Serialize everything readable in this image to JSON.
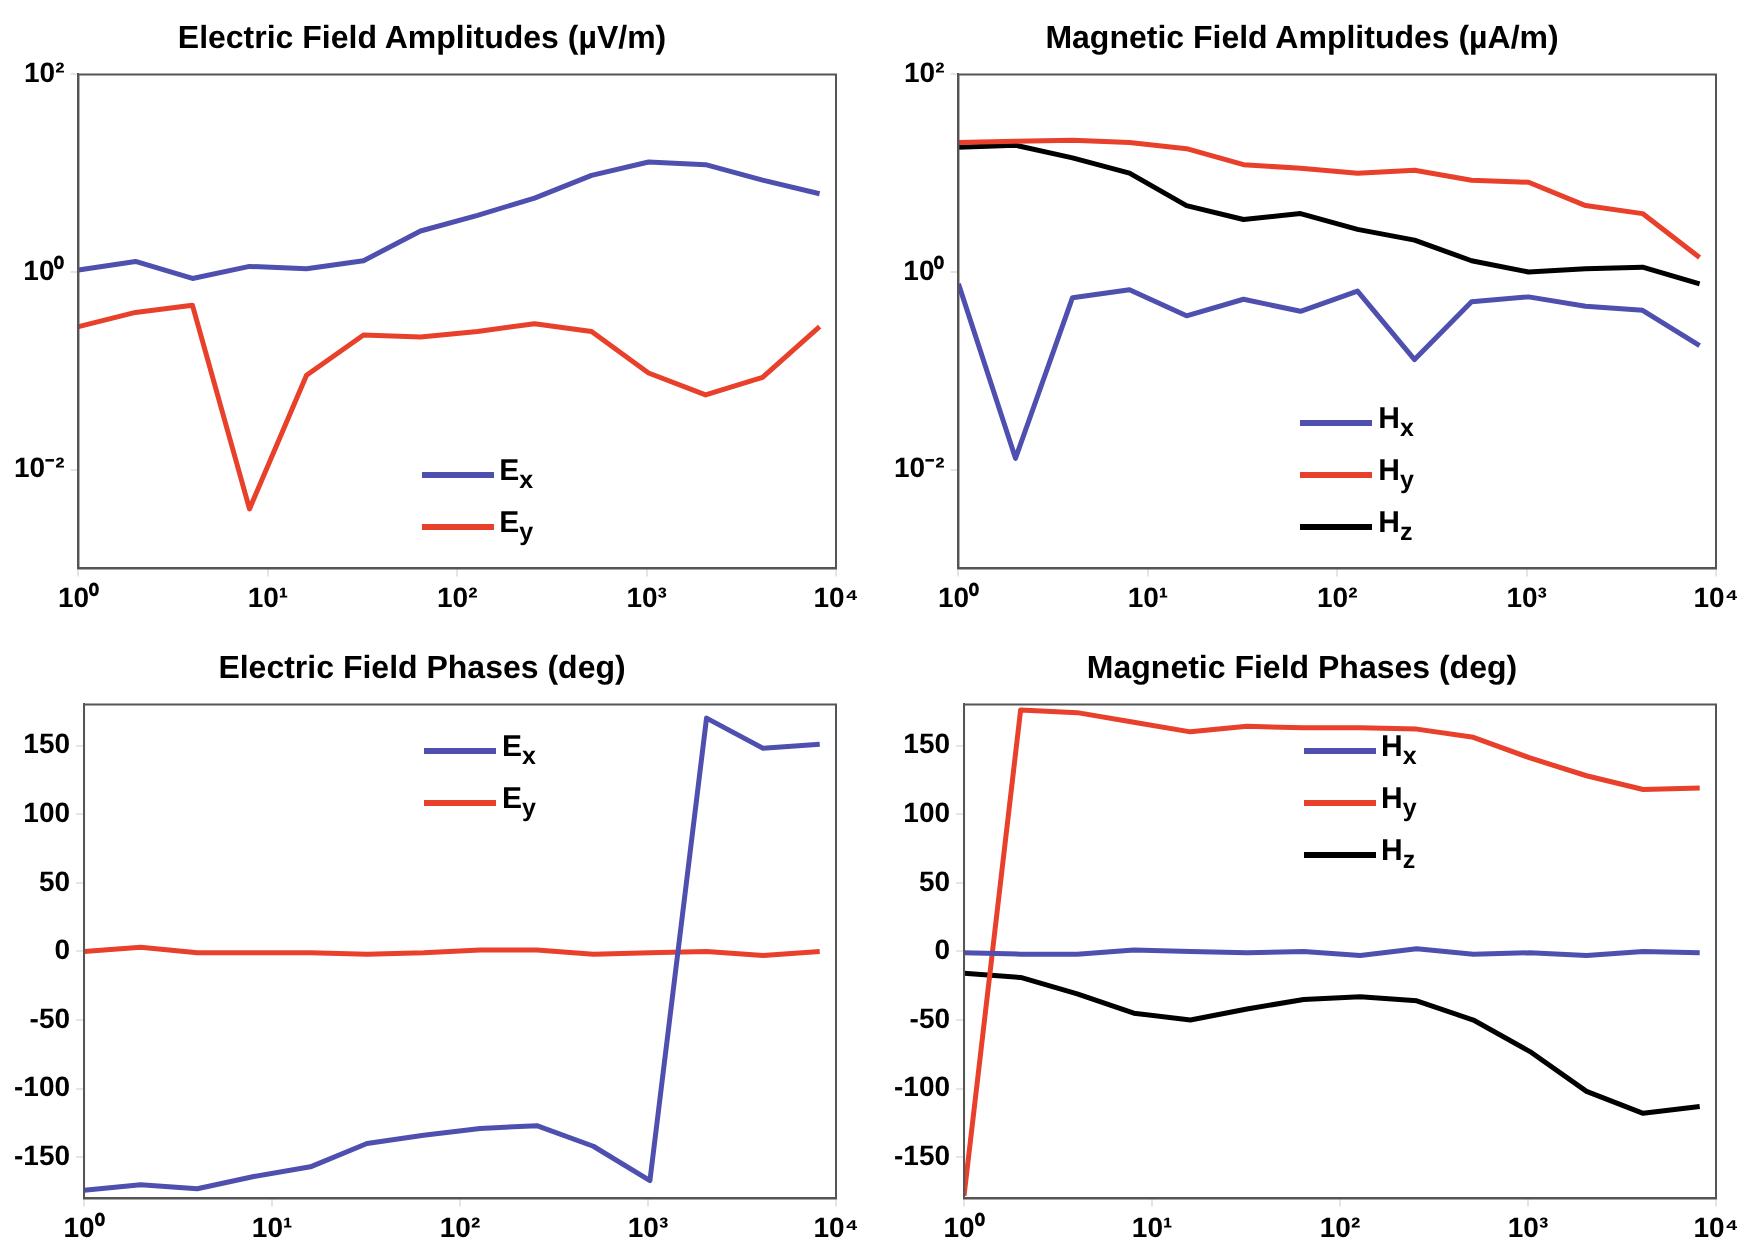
{
  "chart_data": [
    {
      "type": "line",
      "title": "Electric Field Amplitudes (µV/m)",
      "log": "xy",
      "grid": false,
      "legend": "bottom",
      "x": [
        1,
        2,
        4,
        8,
        16,
        32,
        64,
        128,
        256,
        512,
        1024,
        2048,
        4096,
        8192
      ],
      "xlim": [
        1,
        10000
      ],
      "xticks": [
        {
          "value": 1,
          "label": "10⁰"
        },
        {
          "value": 10,
          "label": "10¹"
        },
        {
          "value": 100,
          "label": "10²"
        },
        {
          "value": 1000,
          "label": "10³"
        },
        {
          "value": 10000,
          "label": "10⁴"
        }
      ],
      "ylim": [
        0.001,
        100
      ],
      "yticks": [
        {
          "value": 0.01,
          "label": "10⁻²"
        },
        {
          "value": 1,
          "label": "10⁰"
        },
        {
          "value": 100,
          "label": "10²"
        }
      ],
      "series": [
        {
          "name": "E$_{x}$",
          "color": "#4f4fb0",
          "values": [
            1.05,
            1.28,
            0.86,
            1.14,
            1.08,
            1.3,
            2.6,
            3.75,
            5.6,
            9.5,
            13,
            12.2,
            8.5,
            6.2
          ]
        },
        {
          "name": "E$_{y}$",
          "color": "#e8402a",
          "values": [
            0.28,
            0.39,
            0.46,
            0.004,
            0.09,
            0.23,
            0.22,
            0.25,
            0.3,
            0.25,
            0.095,
            0.057,
            0.086,
            0.28
          ]
        }
      ]
    },
    {
      "type": "line",
      "title": "Magnetic Field Amplitudes (µA/m)",
      "log": "xy",
      "grid": false,
      "legend": "bottom",
      "x": [
        1,
        2,
        4,
        8,
        16,
        32,
        64,
        128,
        256,
        512,
        1024,
        2048,
        4096,
        8192
      ],
      "xlim": [
        1,
        10000
      ],
      "xticks": [
        {
          "value": 1,
          "label": "10⁰"
        },
        {
          "value": 10,
          "label": "10¹"
        },
        {
          "value": 100,
          "label": "10²"
        },
        {
          "value": 1000,
          "label": "10³"
        },
        {
          "value": 10000,
          "label": "10⁴"
        }
      ],
      "ylim": [
        0.001,
        100
      ],
      "yticks": [
        {
          "value": 0.01,
          "label": "10⁻²"
        },
        {
          "value": 1,
          "label": "10⁰"
        },
        {
          "value": 100,
          "label": "10²"
        }
      ],
      "series": [
        {
          "name": "H$_{x}$",
          "color": "#4f4fb0",
          "values": [
            0.76,
            0.013,
            0.55,
            0.66,
            0.36,
            0.53,
            0.4,
            0.64,
            0.13,
            0.5,
            0.56,
            0.45,
            0.41,
            0.18
          ]
        },
        {
          "name": "H$_{y}$",
          "color": "#e8402a",
          "values": [
            20.5,
            21,
            21.6,
            20.5,
            17.7,
            12.2,
            11.2,
            10,
            10.7,
            8.5,
            8.1,
            4.7,
            3.9,
            1.4
          ]
        },
        {
          "name": "H$_{z}$",
          "color": "#000000",
          "values": [
            18.3,
            19.2,
            14.3,
            10,
            4.7,
            3.4,
            3.9,
            2.7,
            2.1,
            1.3,
            1.0,
            1.08,
            1.12,
            0.76
          ]
        }
      ]
    },
    {
      "type": "line",
      "title": "Electric Field Phases (deg)",
      "log": "x",
      "grid": false,
      "legend": "top",
      "x": [
        1,
        2,
        4,
        8,
        16,
        32,
        64,
        128,
        256,
        512,
        1024,
        2048,
        4096,
        8192
      ],
      "xlim": [
        1,
        10000
      ],
      "xticks": [
        {
          "value": 1,
          "label": "10⁰"
        },
        {
          "value": 10,
          "label": "10¹"
        },
        {
          "value": 100,
          "label": "10²"
        },
        {
          "value": 1000,
          "label": "10³"
        },
        {
          "value": 10000,
          "label": "10⁴"
        }
      ],
      "ylim": [
        -180,
        180
      ],
      "yticks": [
        -150,
        -100,
        -50,
        0,
        50,
        100,
        150
      ],
      "series": [
        {
          "name": "E$_{x}$",
          "color": "#4f4fb0",
          "values": [
            -174,
            -170,
            -173,
            -164,
            -157,
            -140,
            -134,
            -129,
            -127,
            -142,
            -167,
            170,
            148,
            151
          ]
        },
        {
          "name": "E$_{y}$",
          "color": "#e8402a",
          "values": [
            0,
            3,
            -1,
            -1,
            -1,
            -2,
            -1,
            1,
            1,
            -2,
            -1,
            0,
            -3,
            0
          ]
        }
      ]
    },
    {
      "type": "line",
      "title": "Magnetic Field Phases (deg)",
      "log": "x",
      "grid": false,
      "legend": "top",
      "x": [
        1,
        2,
        4,
        8,
        16,
        32,
        64,
        128,
        256,
        512,
        1024,
        2048,
        4096,
        8192
      ],
      "xlim": [
        1,
        10000
      ],
      "xticks": [
        {
          "value": 1,
          "label": "10⁰"
        },
        {
          "value": 10,
          "label": "10¹"
        },
        {
          "value": 100,
          "label": "10²"
        },
        {
          "value": 1000,
          "label": "10³"
        },
        {
          "value": 10000,
          "label": "10⁴"
        }
      ],
      "ylim": [
        -180,
        180
      ],
      "yticks": [
        -150,
        -100,
        -50,
        0,
        50,
        100,
        150
      ],
      "series": [
        {
          "name": "H$_{x}$",
          "color": "#4f4fb0",
          "values": [
            -1,
            -2,
            -2,
            1,
            0,
            -1,
            0,
            -3,
            2,
            -2,
            -1,
            -3,
            0,
            -1
          ]
        },
        {
          "name": "H$_{y}$",
          "color": "#e8402a",
          "values": [
            -178,
            176,
            174,
            167,
            160,
            164,
            163,
            163,
            162,
            156,
            141,
            128,
            118,
            119
          ]
        },
        {
          "name": "H$_{z}$",
          "color": "#000000",
          "values": [
            -16,
            -19,
            -31,
            -45,
            -50,
            -42,
            -35,
            -33,
            -36,
            -50,
            -73,
            -102,
            -118,
            -113
          ]
        }
      ]
    }
  ]
}
